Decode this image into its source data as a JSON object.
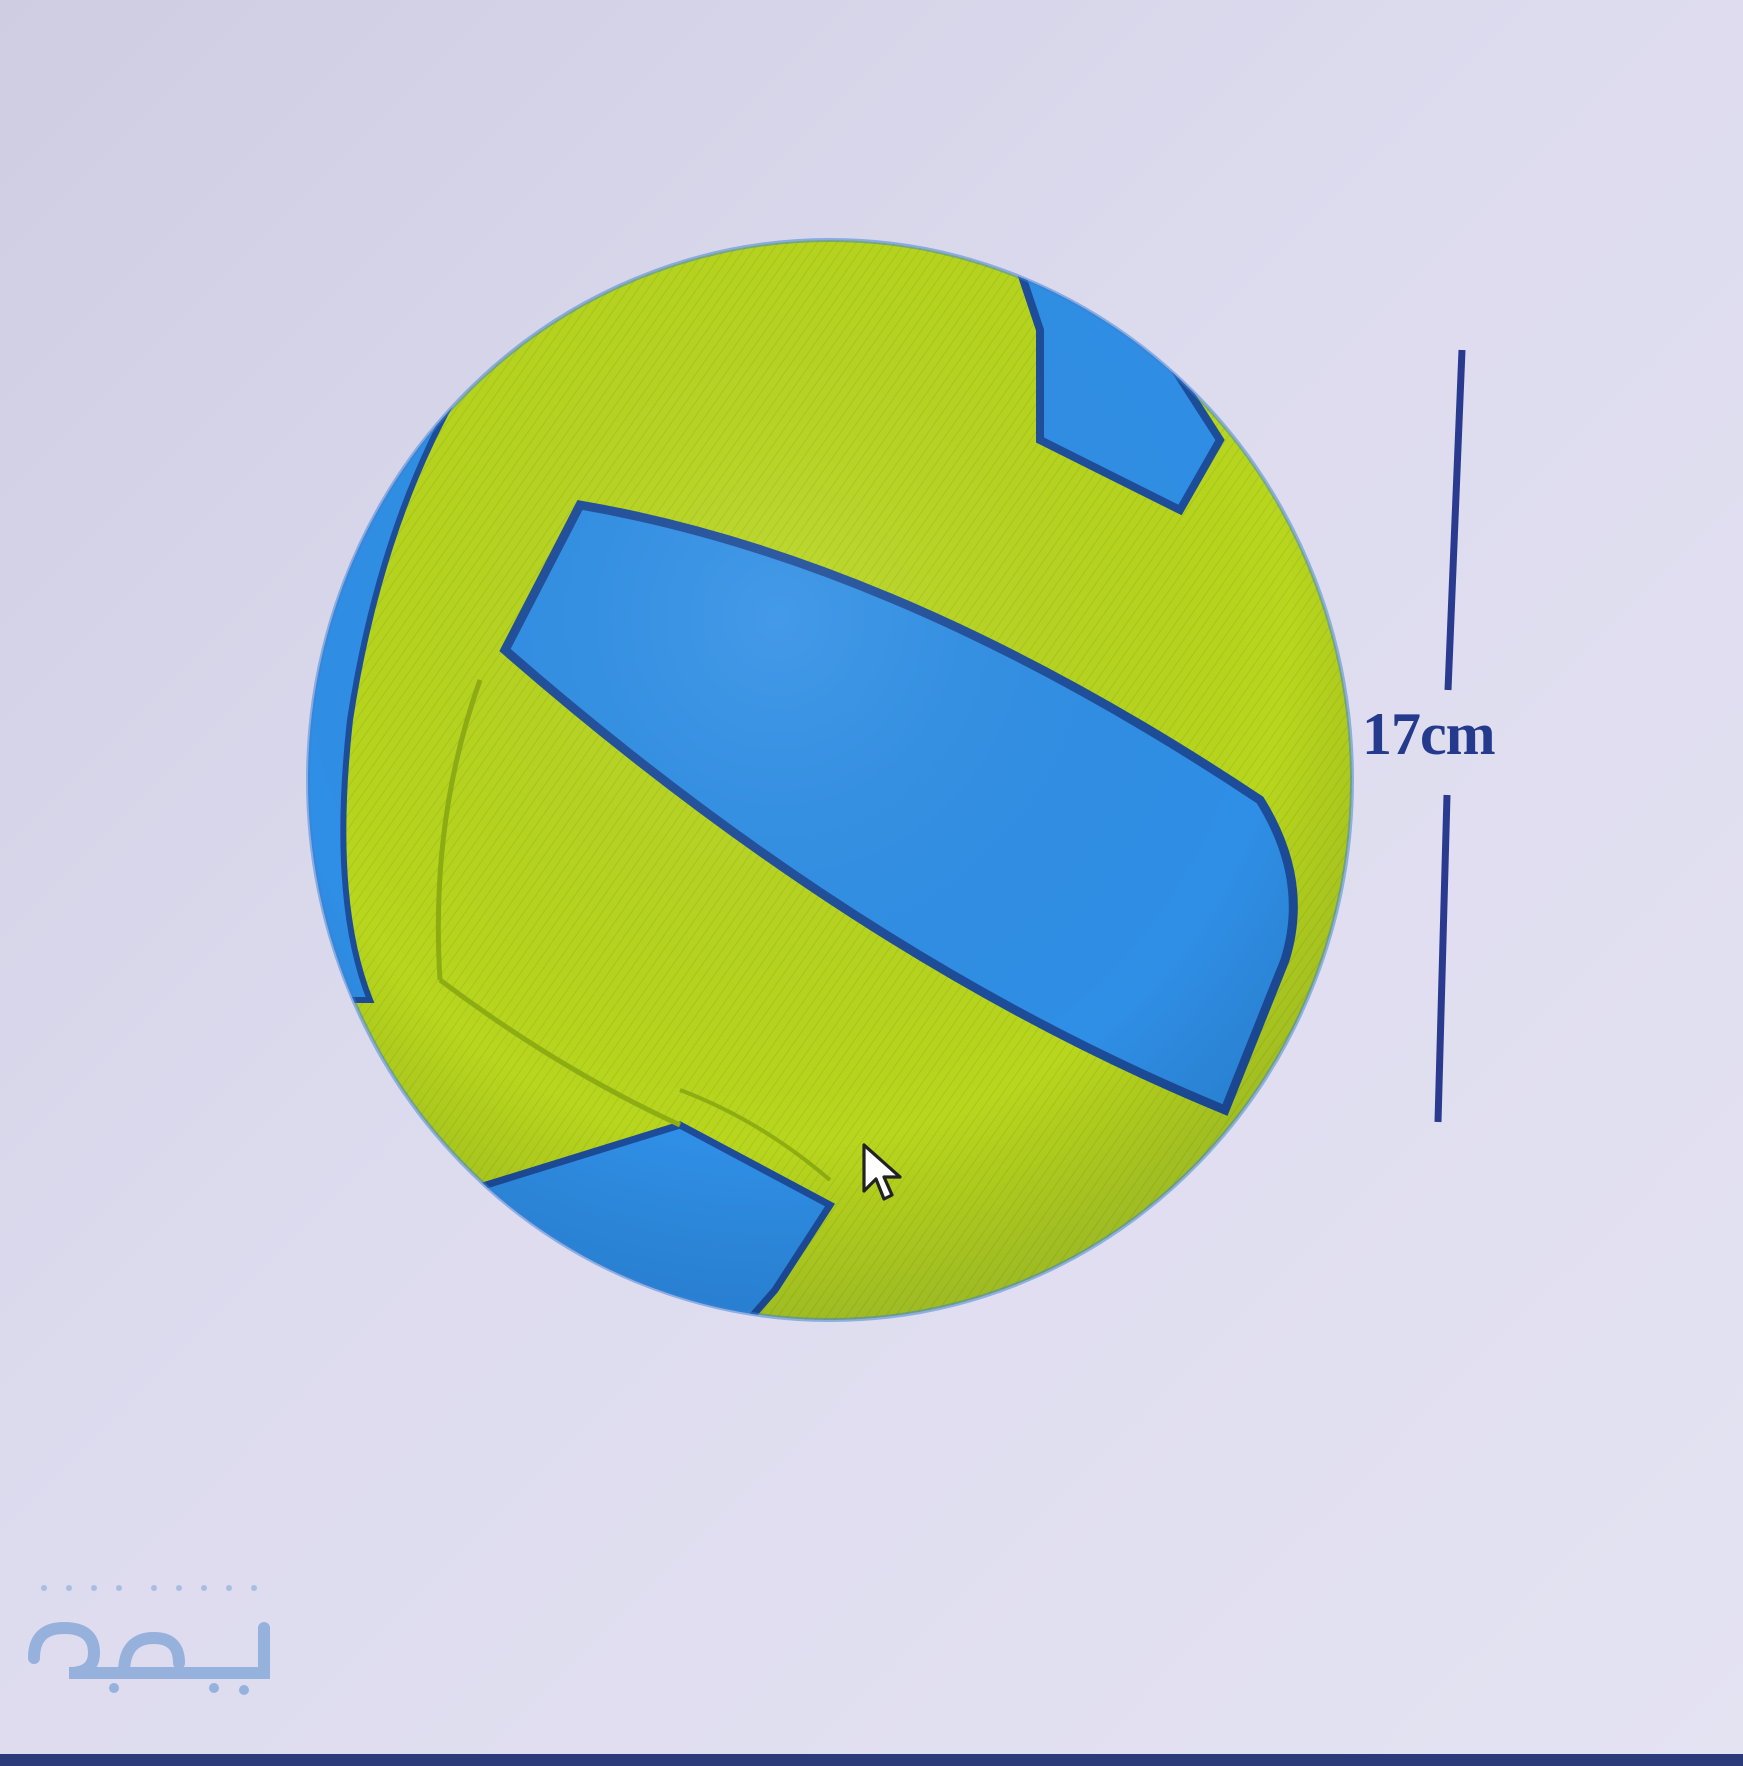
{
  "diagram": {
    "object": "volleyball-icon",
    "dimension": {
      "label": "17cm"
    },
    "colors": {
      "panel_yellow": "#b8d61e",
      "panel_blue": "#2f8fe6",
      "seam": "#1d4d9a",
      "dimension_line": "#2a3a8f",
      "background": "#dddbee"
    }
  },
  "watermark": {
    "logo": "logo-icon"
  },
  "cursor": {
    "icon": "mouse-pointer-icon"
  }
}
